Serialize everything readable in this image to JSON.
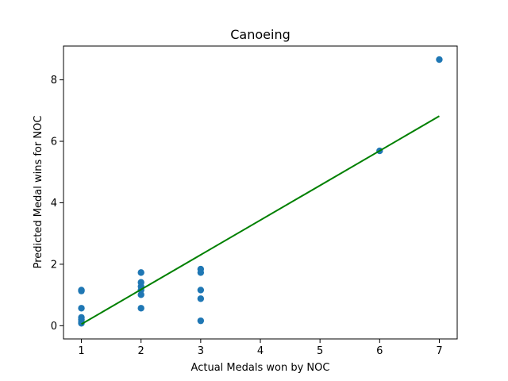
{
  "chart_data": {
    "type": "scatter",
    "title": "Canoeing",
    "xlabel": "Actual Medals won by NOC",
    "ylabel": "Predicted Medal wins for NOC",
    "xlim": [
      0.7,
      7.3
    ],
    "ylim": [
      -0.43,
      9.1
    ],
    "xticks": [
      1,
      2,
      3,
      4,
      5,
      6,
      7
    ],
    "yticks": [
      0,
      2,
      4,
      6,
      8
    ],
    "grid": false,
    "legend": "none",
    "points": [
      {
        "x": 1,
        "y": 1.16
      },
      {
        "x": 1,
        "y": 1.13
      },
      {
        "x": 1,
        "y": 0.57
      },
      {
        "x": 1,
        "y": 0.27
      },
      {
        "x": 1,
        "y": 0.2
      },
      {
        "x": 1,
        "y": 0.12
      },
      {
        "x": 1,
        "y": 0.08
      },
      {
        "x": 2,
        "y": 1.73
      },
      {
        "x": 2,
        "y": 1.41
      },
      {
        "x": 2,
        "y": 1.28
      },
      {
        "x": 2,
        "y": 1.16
      },
      {
        "x": 2,
        "y": 1.01
      },
      {
        "x": 2,
        "y": 0.57
      },
      {
        "x": 3,
        "y": 1.84
      },
      {
        "x": 3,
        "y": 1.73
      },
      {
        "x": 3,
        "y": 1.16
      },
      {
        "x": 3,
        "y": 0.88
      },
      {
        "x": 3,
        "y": 0.16
      },
      {
        "x": 6,
        "y": 5.69
      },
      {
        "x": 7,
        "y": 8.66
      }
    ],
    "fit_line": {
      "x": [
        1,
        7
      ],
      "y": [
        0.05,
        6.82
      ]
    },
    "colors": {
      "points": "#1f77b4",
      "fit_line": "#008000"
    }
  }
}
